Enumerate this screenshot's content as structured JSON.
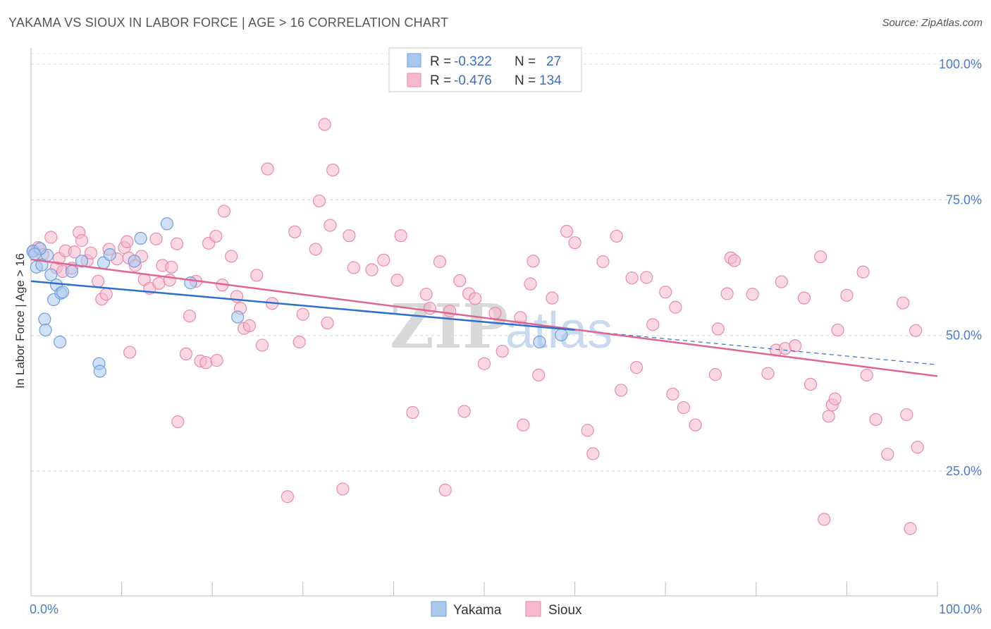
{
  "title": "YAKAMA VS SIOUX IN LABOR FORCE | AGE > 16 CORRELATION CHART",
  "source": "Source: ZipAtlas.com",
  "watermark": {
    "zip": "ZIP",
    "atlas": "atlas"
  },
  "colors": {
    "yakama_fill": "#a9c8ee",
    "yakama_stroke": "#6f9fdc",
    "yakama_line": "#2f6fcc",
    "sioux_fill": "#f5b8cc",
    "sioux_stroke": "#e98aa9",
    "sioux_line": "#e06590",
    "tick": "#4a7cc7",
    "grid": "#d9d9d9"
  },
  "legend": {
    "rows": [
      {
        "r_label": "R =",
        "r_value": "-0.322",
        "n_label": "N =",
        "n_value": "27"
      },
      {
        "r_label": "R =",
        "r_value": "-0.476",
        "n_label": "N =",
        "n_value": "134"
      }
    ]
  },
  "chart_data": {
    "type": "scatter",
    "title": "YAKAMA VS SIOUX IN LABOR FORCE | AGE > 16 CORRELATION CHART",
    "xlabel": "",
    "ylabel": "In Labor Force | Age > 16",
    "xlim": [
      0,
      100
    ],
    "ylim": [
      2,
      103
    ],
    "x_tick_labels": [
      "0.0%",
      "100.0%"
    ],
    "y_ticks": [
      25,
      50,
      75,
      100
    ],
    "y_tick_labels": [
      "25.0%",
      "50.0%",
      "75.0%",
      "100.0%"
    ],
    "legend_position": "bottom-center",
    "series": [
      {
        "name": "Yakama",
        "r": -0.322,
        "n": 27,
        "trend": {
          "x0": 0,
          "y0": 60.0,
          "x1": 60,
          "y1": 51.0,
          "dash_to_x": 100,
          "dash_to_y": 44.6
        },
        "points": [
          [
            0.2,
            65.5
          ],
          [
            0.6,
            62.6
          ],
          [
            1.2,
            63.0
          ],
          [
            1.5,
            53.0
          ],
          [
            1.6,
            51.0
          ],
          [
            1.8,
            64.8
          ],
          [
            2.2,
            61.2
          ],
          [
            2.5,
            56.6
          ],
          [
            2.8,
            59.3
          ],
          [
            3.2,
            48.8
          ],
          [
            3.3,
            57.8
          ],
          [
            3.5,
            58.0
          ],
          [
            4.5,
            61.8
          ],
          [
            5.6,
            63.7
          ],
          [
            7.5,
            44.8
          ],
          [
            7.6,
            43.4
          ],
          [
            8.0,
            63.4
          ],
          [
            8.7,
            64.9
          ],
          [
            11.4,
            63.7
          ],
          [
            12.1,
            67.9
          ],
          [
            15.0,
            70.6
          ],
          [
            17.6,
            59.7
          ],
          [
            22.8,
            53.4
          ],
          [
            56.1,
            48.8
          ],
          [
            58.5,
            50.1
          ],
          [
            1.0,
            66.0
          ],
          [
            0.4,
            65.0
          ]
        ]
      },
      {
        "name": "Sioux",
        "r": -0.476,
        "n": 134,
        "trend": {
          "x0": 0,
          "y0": 64.0,
          "x1": 100,
          "y1": 42.5
        },
        "points": [
          [
            0.3,
            65.6
          ],
          [
            0.8,
            66.2
          ],
          [
            1.3,
            64.9
          ],
          [
            2.2,
            68.1
          ],
          [
            2.8,
            62.5
          ],
          [
            3.1,
            64.2
          ],
          [
            3.5,
            61.8
          ],
          [
            3.8,
            65.6
          ],
          [
            4.5,
            62.4
          ],
          [
            4.8,
            65.4
          ],
          [
            5.3,
            69.0
          ],
          [
            5.6,
            67.5
          ],
          [
            6.2,
            63.8
          ],
          [
            6.6,
            65.2
          ],
          [
            7.4,
            60.0
          ],
          [
            7.8,
            56.7
          ],
          [
            8.3,
            57.6
          ],
          [
            8.6,
            65.9
          ],
          [
            9.5,
            64.1
          ],
          [
            10.3,
            66.2
          ],
          [
            10.6,
            67.3
          ],
          [
            10.8,
            64.3
          ],
          [
            10.9,
            46.9
          ],
          [
            11.5,
            62.9
          ],
          [
            12.2,
            64.6
          ],
          [
            12.5,
            60.3
          ],
          [
            13.1,
            58.7
          ],
          [
            13.8,
            67.8
          ],
          [
            14.1,
            59.6
          ],
          [
            14.5,
            62.9
          ],
          [
            15.3,
            60.2
          ],
          [
            15.5,
            62.6
          ],
          [
            16.1,
            66.9
          ],
          [
            16.2,
            34.1
          ],
          [
            17.1,
            46.6
          ],
          [
            17.5,
            53.6
          ],
          [
            18.2,
            60.0
          ],
          [
            18.7,
            45.3
          ],
          [
            19.3,
            45.0
          ],
          [
            19.6,
            67.0
          ],
          [
            20.4,
            68.3
          ],
          [
            20.5,
            45.4
          ],
          [
            21.1,
            59.3
          ],
          [
            21.3,
            72.9
          ],
          [
            22.1,
            64.6
          ],
          [
            22.7,
            57.2
          ],
          [
            23.1,
            55.0
          ],
          [
            23.5,
            51.3
          ],
          [
            24.1,
            51.8
          ],
          [
            24.9,
            61.1
          ],
          [
            25.5,
            48.2
          ],
          [
            26.1,
            80.7
          ],
          [
            26.6,
            55.9
          ],
          [
            28.3,
            20.3
          ],
          [
            29.1,
            69.1
          ],
          [
            29.6,
            48.8
          ],
          [
            30.0,
            53.9
          ],
          [
            31.4,
            65.9
          ],
          [
            31.8,
            74.8
          ],
          [
            32.4,
            88.9
          ],
          [
            32.7,
            52.3
          ],
          [
            33.0,
            70.3
          ],
          [
            33.3,
            80.5
          ],
          [
            34.4,
            21.7
          ],
          [
            35.1,
            68.4
          ],
          [
            35.6,
            62.5
          ],
          [
            37.6,
            62.1
          ],
          [
            38.9,
            63.9
          ],
          [
            40.4,
            60.2
          ],
          [
            40.8,
            68.4
          ],
          [
            42.1,
            35.8
          ],
          [
            43.6,
            57.6
          ],
          [
            44.0,
            55.0
          ],
          [
            45.1,
            63.6
          ],
          [
            45.7,
            21.5
          ],
          [
            46.2,
            54.5
          ],
          [
            47.3,
            60.1
          ],
          [
            47.8,
            36.0
          ],
          [
            48.3,
            57.7
          ],
          [
            49.0,
            56.8
          ],
          [
            50.0,
            44.8
          ],
          [
            51.2,
            54.1
          ],
          [
            52.0,
            47.1
          ],
          [
            54.0,
            53.3
          ],
          [
            54.3,
            33.5
          ],
          [
            55.1,
            59.5
          ],
          [
            55.4,
            63.7
          ],
          [
            56.0,
            42.7
          ],
          [
            57.5,
            56.9
          ],
          [
            59.1,
            69.2
          ],
          [
            60.0,
            67.1
          ],
          [
            61.4,
            32.5
          ],
          [
            62.0,
            28.2
          ],
          [
            63.1,
            63.6
          ],
          [
            64.6,
            68.3
          ],
          [
            65.1,
            39.9
          ],
          [
            66.3,
            60.6
          ],
          [
            66.8,
            44.1
          ],
          [
            67.9,
            60.7
          ],
          [
            68.6,
            52.0
          ],
          [
            70.0,
            58.0
          ],
          [
            70.8,
            39.2
          ],
          [
            71.1,
            55.2
          ],
          [
            72.0,
            36.7
          ],
          [
            73.3,
            33.5
          ],
          [
            75.5,
            42.8
          ],
          [
            75.8,
            51.2
          ],
          [
            76.8,
            57.7
          ],
          [
            77.2,
            64.3
          ],
          [
            77.6,
            63.8
          ],
          [
            79.6,
            57.6
          ],
          [
            81.3,
            43.0
          ],
          [
            82.2,
            47.3
          ],
          [
            82.8,
            59.9
          ],
          [
            83.2,
            47.6
          ],
          [
            84.3,
            48.1
          ],
          [
            85.3,
            56.9
          ],
          [
            86.0,
            41.0
          ],
          [
            87.1,
            64.5
          ],
          [
            87.5,
            16.1
          ],
          [
            88.0,
            35.1
          ],
          [
            88.4,
            37.2
          ],
          [
            88.7,
            38.3
          ],
          [
            89.0,
            51.0
          ],
          [
            90.0,
            57.4
          ],
          [
            91.8,
            61.7
          ],
          [
            92.2,
            42.7
          ],
          [
            93.2,
            34.5
          ],
          [
            94.5,
            28.1
          ],
          [
            96.2,
            56.0
          ],
          [
            96.6,
            35.4
          ],
          [
            97.0,
            14.4
          ],
          [
            97.6,
            50.9
          ],
          [
            97.8,
            29.4
          ]
        ]
      }
    ]
  }
}
